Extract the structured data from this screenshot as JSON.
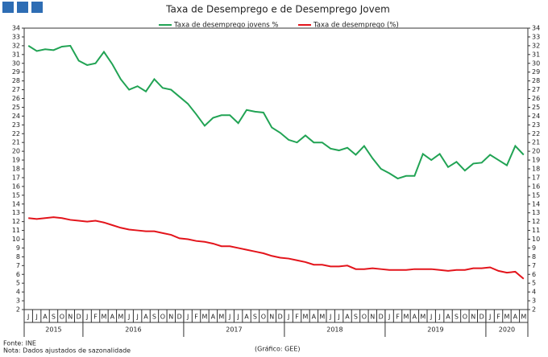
{
  "chart_data": {
    "type": "line",
    "title": "Taxa de Desemprego e de Desemprego Jovem",
    "categories": [
      "J",
      "J",
      "A",
      "S",
      "O",
      "N",
      "D",
      "J",
      "F",
      "M",
      "A",
      "M",
      "J",
      "J",
      "A",
      "S",
      "O",
      "N",
      "D",
      "J",
      "F",
      "M",
      "A",
      "M",
      "J",
      "J",
      "A",
      "S",
      "O",
      "N",
      "D",
      "J",
      "F",
      "M",
      "A",
      "M",
      "J",
      "J",
      "A",
      "S",
      "O",
      "N",
      "D",
      "J",
      "F",
      "M",
      "A",
      "M",
      "J",
      "J",
      "A",
      "S",
      "O",
      "N",
      "D",
      "J",
      "F",
      "M",
      "A",
      "M"
    ],
    "years": [
      "2015",
      "2016",
      "2017",
      "2018",
      "2019",
      "2020"
    ],
    "series": [
      {
        "name": "Taxa de desemprego jovens %",
        "color": "#21a354",
        "values": [
          32.0,
          31.4,
          31.6,
          31.5,
          31.9,
          32.0,
          30.3,
          29.8,
          30.0,
          31.3,
          29.9,
          28.2,
          27.0,
          27.4,
          26.8,
          28.2,
          27.2,
          27.0,
          26.2,
          25.4,
          24.2,
          22.9,
          23.8,
          24.1,
          24.1,
          23.2,
          24.7,
          24.5,
          24.4,
          22.7,
          22.1,
          21.3,
          21.0,
          21.8,
          21.0,
          21.0,
          20.3,
          20.1,
          20.4,
          19.6,
          20.6,
          19.2,
          18.0,
          17.5,
          16.9,
          17.2,
          17.2,
          19.7,
          19.0,
          19.7,
          18.2,
          18.8,
          17.8,
          18.6,
          18.7,
          19.6,
          19.0,
          18.4,
          20.6,
          19.6
        ]
      },
      {
        "name": "Taxa de desemprego (%)",
        "color": "#e3141b",
        "values": [
          12.4,
          12.3,
          12.4,
          12.5,
          12.4,
          12.2,
          12.1,
          12.0,
          12.1,
          11.9,
          11.6,
          11.3,
          11.1,
          11.0,
          10.9,
          10.9,
          10.7,
          10.5,
          10.1,
          10.0,
          9.8,
          9.7,
          9.5,
          9.2,
          9.2,
          9.0,
          8.8,
          8.6,
          8.4,
          8.1,
          7.9,
          7.8,
          7.6,
          7.4,
          7.1,
          7.1,
          6.9,
          6.9,
          7.0,
          6.6,
          6.6,
          6.7,
          6.6,
          6.5,
          6.5,
          6.5,
          6.6,
          6.6,
          6.6,
          6.5,
          6.4,
          6.5,
          6.5,
          6.7,
          6.7,
          6.8,
          6.4,
          6.2,
          6.3,
          5.5
        ]
      }
    ],
    "ylim": [
      2,
      34
    ],
    "yticks": [
      2,
      3,
      4,
      5,
      6,
      7,
      8,
      9,
      10,
      11,
      12,
      13,
      14,
      15,
      16,
      17,
      18,
      19,
      20,
      21,
      22,
      23,
      24,
      25,
      26,
      27,
      28,
      29,
      30,
      31,
      32,
      33,
      34
    ],
    "grid": false,
    "notes": [
      "Fonte: INE",
      "Nota: Dados ajustados de sazonalidade"
    ],
    "credit": "(Gráfico: GEE)"
  }
}
